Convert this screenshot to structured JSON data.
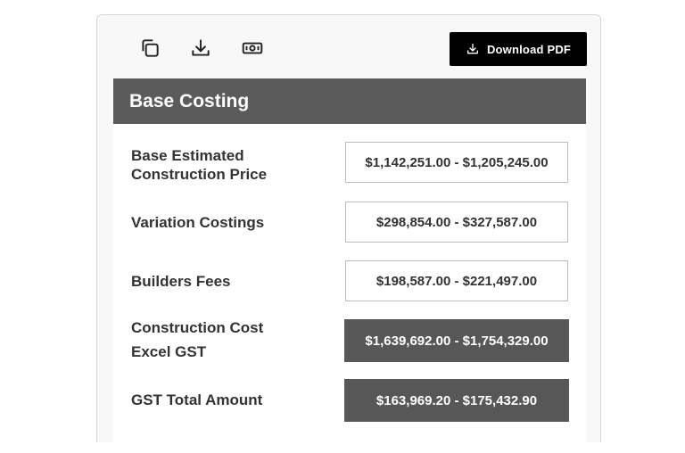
{
  "toolbar": {
    "icons": [
      "copy-icon",
      "download-icon",
      "cash-icon"
    ],
    "download_pdf_label": "Download PDF"
  },
  "panel": {
    "title": "Base Costing",
    "rows": [
      {
        "label": "Base Estimated Construction Price",
        "value": "$1,142,251.00 - $1,205,245.00",
        "style": "outlined"
      },
      {
        "label": "Variation Costings",
        "value": "$298,854.00 - $327,587.00",
        "style": "outlined"
      },
      {
        "label": "Builders Fees",
        "value": "$198,587.00 - $221,497.00",
        "style": "outlined"
      },
      {
        "label": "Construction Cost Excel GST",
        "value": "$1,639,692.00 - $1,754,329.00",
        "style": "filled"
      },
      {
        "label": "GST Total Amount",
        "value": "$163,969.20 - $175,432.90",
        "style": "filled"
      }
    ]
  },
  "colors": {
    "header_bg": "#5b5b5b",
    "filled_value_bg": "#575757",
    "button_bg": "#000000"
  }
}
